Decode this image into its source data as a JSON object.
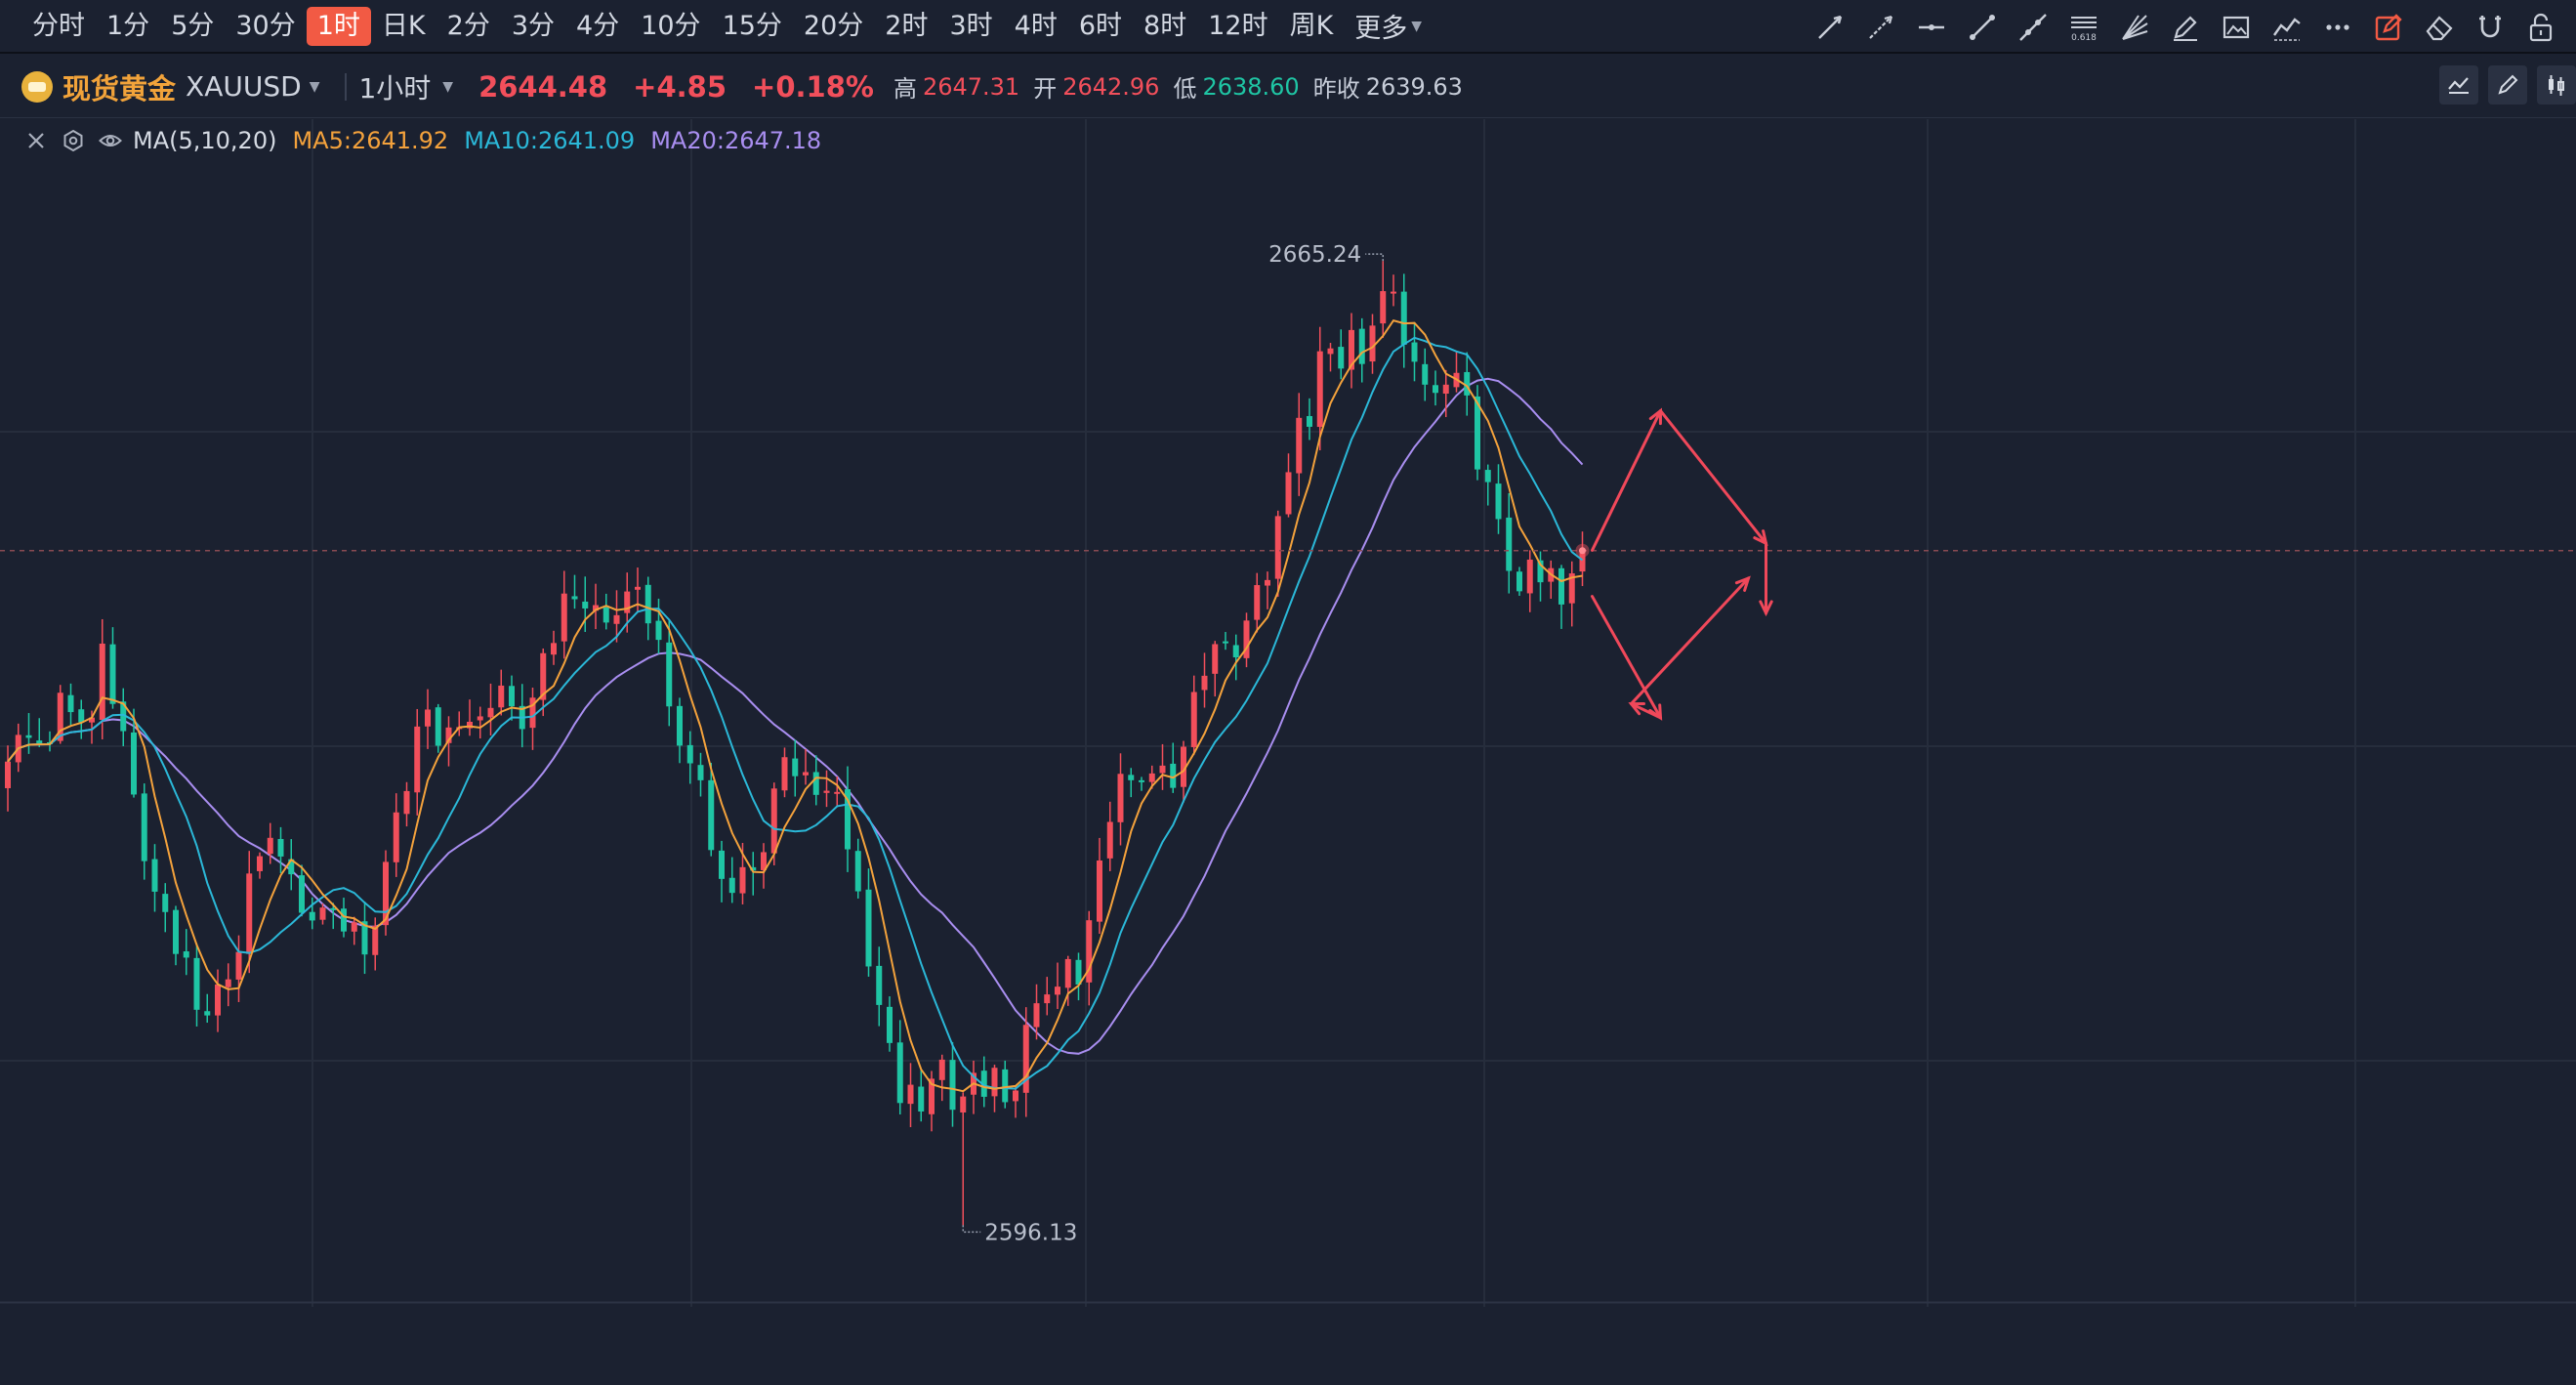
{
  "toolbar": {
    "timeframes": [
      "分时",
      "1分",
      "5分",
      "30分",
      "1时",
      "日K",
      "2分",
      "3分",
      "4分",
      "10分",
      "15分",
      "20分",
      "2时",
      "3时",
      "4时",
      "6时",
      "8时",
      "12时",
      "周K"
    ],
    "active_index": 4,
    "more_label": "更多",
    "tools": [
      "trend-line-icon",
      "ray-icon",
      "horizontal-line-icon",
      "segment-icon",
      "extended-line-icon",
      "fibonacci-icon",
      "fan-icon",
      "pencil-icon",
      "image-icon",
      "polyline-icon",
      "more-dots-icon",
      "edit-icon",
      "eraser-icon",
      "magnet-icon",
      "lock-icon"
    ],
    "fib_label": "0.618",
    "accent": "#f25a44"
  },
  "symbol": {
    "name": "现货黄金",
    "code": "XAUUSD",
    "period": "1小时",
    "price": "2644.48",
    "change": "+4.85",
    "change_pct": "+0.18%",
    "high_label": "高",
    "high": "2647.31",
    "open_label": "开",
    "open": "2642.96",
    "low_label": "低",
    "low": "2638.60",
    "prev_close_label": "昨收",
    "prev_close": "2639.63",
    "up_color": "#f24f5b",
    "down_color": "#1fc5a4"
  },
  "indicator": {
    "name": "MA(5,10,20)",
    "ma5": "MA5:2641.92",
    "ma10": "MA10:2641.09",
    "ma20": "MA20:2647.18",
    "ma5_color": "#f4a23c",
    "ma10_color": "#2bb8d8",
    "ma20_color": "#a98ef0"
  },
  "chart_data": {
    "type": "candlestick",
    "instrument": "XAUUSD",
    "interval": "1h",
    "ylim": [
      2590,
      2674
    ],
    "current_price": 2644.48,
    "max_marker": {
      "label": "2665.24",
      "value": 2665.24
    },
    "min_marker": {
      "label": "2596.13",
      "value": 2596.13
    },
    "path_trend": [
      2628.2,
      2630.6,
      2631.5,
      2630.8,
      2630.9,
      2632.8,
      2632.4,
      2633.5,
      2634.1,
      2637.2,
      2634.0,
      2631.6,
      2626.0,
      2621.3,
      2619.8,
      2617.9,
      2616.7,
      2614.1,
      2613.1,
      2611.6,
      2613.4,
      2614.2,
      2616.7,
      2620.6,
      2623.4,
      2625.0,
      2622.1,
      2620.1,
      2618.6,
      2618.2,
      2620.3,
      2619.2,
      2617.6,
      2617.1,
      2615.4,
      2616.5,
      2620.7,
      2624.4,
      2628.0,
      2631.4,
      2631.5,
      2632.0,
      2631.1,
      2630.3,
      2631.8,
      2631.3,
      2633.8,
      2634.8,
      2634.3,
      2631.9,
      2633.0,
      2636.0,
      2639.1,
      2641.3,
      2640.8,
      2641.2,
      2640.1,
      2640.1,
      2640.2,
      2640.6,
      2641.8,
      2640.3,
      2637.0,
      2633.6,
      2630.8,
      2630.6,
      2628.0,
      2623.9,
      2620.6,
      2621.1,
      2621.8,
      2622.9,
      2623.5,
      2626.5,
      2628.6,
      2628.2,
      2628.3,
      2627.7,
      2627.2,
      2625.7,
      2623.8,
      2620.7,
      2616.1,
      2612.5,
      2609.4,
      2606.4,
      2604.6,
      2604.5,
      2605.1,
      2606.5,
      2605.0,
      2606.3,
      2606.9,
      2606.5,
      2607.0,
      2606.1,
      2605.7,
      2609.6,
      2612.1,
      2613.9,
      2612.4,
      2614.0,
      2614.1,
      2616.9,
      2622.0,
      2626.4,
      2629.1,
      2627.7,
      2627.8,
      2627.4,
      2628.1,
      2628.6,
      2629.5,
      2633.1,
      2636.2,
      2637.0,
      2637.0,
      2637.8,
      2638.8,
      2641.7,
      2643.1,
      2647.5,
      2650.1,
      2654.0,
      2654.4,
      2657.2,
      2657.5,
      2656.3,
      2658.8,
      2658.8,
      2660.2,
      2661.8,
      2661.5,
      2660.4,
      2658.8,
      2657.1,
      2657.1,
      2657.3,
      2656.6,
      2654.2,
      2650.8,
      2648.3,
      2645.5,
      2642.9,
      2642.4,
      2642.9,
      2641.7,
      2641.8,
      2641.5,
      2641.9,
      2644.5
    ],
    "series": [
      {
        "name": "MA5",
        "value": 2641.92
      },
      {
        "name": "MA10",
        "value": 2641.09
      },
      {
        "name": "MA20",
        "value": 2647.18
      }
    ],
    "annotations": {
      "up_path": [
        2644.5,
        2654.5,
        2645.0,
        2640.0
      ],
      "down_path": [
        2641.2,
        2632.5,
        2633.5,
        2642.5
      ],
      "color": "#f0485a"
    }
  }
}
